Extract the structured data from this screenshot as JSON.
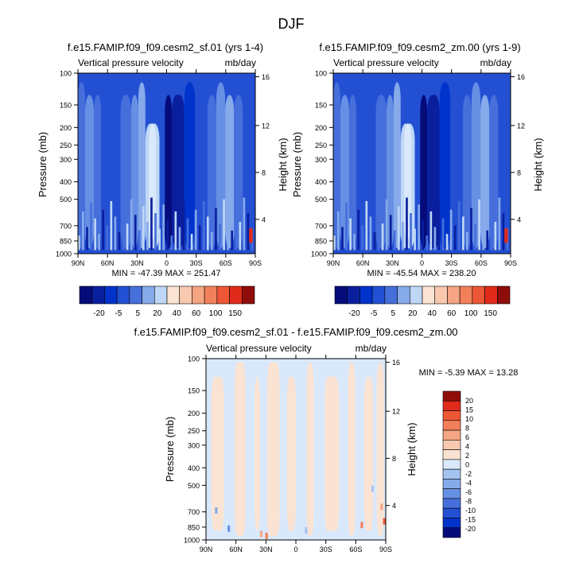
{
  "page_title": "DJF",
  "colors": {
    "pos_ramp": [
      "#FBE3D3",
      "#F8C9AE",
      "#F5A583",
      "#F2805B",
      "#EE5736",
      "#E12B1A",
      "#C41A12",
      "#8E0D0A"
    ],
    "neg_ramp": [
      "#D9E9FB",
      "#BFD7F6",
      "#A4C3F1",
      "#86AAEA",
      "#6690E3",
      "#466FDB",
      "#2350D3",
      "#0033CC",
      "#0A1F9E",
      "#050C7A"
    ]
  },
  "chart_data": [
    {
      "type": "heatmap",
      "title": "f.e15.FAMIP.f09_f09.cesm2_sf.01 (yrs 1-4)",
      "left_label": "Vertical pressure velocity",
      "right_label": "mb/day",
      "ylabel": "Pressure (mb)",
      "ylabel_right": "Height (km)",
      "x_ticks": [
        "90N",
        "60N",
        "30N",
        "0",
        "30S",
        "60S",
        "90S"
      ],
      "y_ticks": [
        "100",
        "150",
        "200",
        "250",
        "300",
        "400",
        "500",
        "700",
        "850",
        "1000"
      ],
      "height_ticks": [
        "16",
        "12",
        "8",
        "4"
      ],
      "stats": "MIN = -47.39  MAX = 251.47",
      "colorbar_levels": [
        "-20",
        "-5",
        "5",
        "20",
        "40",
        "60",
        "100",
        "150"
      ]
    },
    {
      "type": "heatmap",
      "title": "f.e15.FAMIP.f09_f09.cesm2_zm.00 (yrs 1-9)",
      "left_label": "Vertical pressure velocity",
      "right_label": "mb/day",
      "ylabel": "Pressure (mb)",
      "ylabel_right": "Height (km)",
      "x_ticks": [
        "90N",
        "60N",
        "30N",
        "0",
        "30S",
        "60S",
        "90S"
      ],
      "y_ticks": [
        "100",
        "150",
        "200",
        "250",
        "300",
        "400",
        "500",
        "700",
        "850",
        "1000"
      ],
      "height_ticks": [
        "16",
        "12",
        "8",
        "4"
      ],
      "stats": "MIN = -45.54  MAX = 238.20",
      "colorbar_levels": [
        "-20",
        "-5",
        "5",
        "20",
        "40",
        "60",
        "100",
        "150"
      ]
    },
    {
      "type": "heatmap",
      "title": "f.e15.FAMIP.f09_f09.cesm2_sf.01 - f.e15.FAMIP.f09_f09.cesm2_zm.00",
      "left_label": "Vertical pressure velocity",
      "right_label": "mb/day",
      "ylabel": "Pressure (mb)",
      "ylabel_right": "Height (km)",
      "x_ticks": [
        "90N",
        "60N",
        "30N",
        "0",
        "30S",
        "60S",
        "90S"
      ],
      "y_ticks": [
        "100",
        "150",
        "200",
        "250",
        "300",
        "400",
        "500",
        "700",
        "850",
        "1000"
      ],
      "height_ticks": [
        "16",
        "12",
        "8",
        "4"
      ],
      "stats": "MIN = -5.39  MAX = 13.28",
      "colorbar_levels": [
        "20",
        "15",
        "10",
        "8",
        "6",
        "4",
        "2",
        "0",
        "-2",
        "-4",
        "-6",
        "-8",
        "-10",
        "-15",
        "-20"
      ]
    }
  ]
}
